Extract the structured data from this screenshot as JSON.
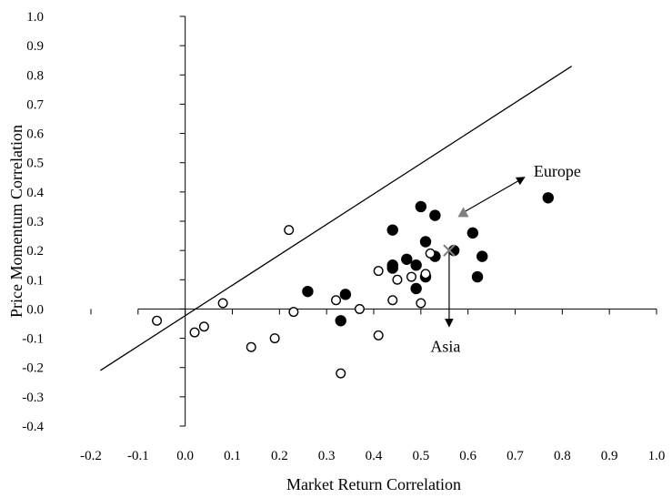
{
  "chart_data": {
    "type": "scatter",
    "title": "",
    "xlabel": "Market Return Correlation",
    "ylabel": "Price Momentum Correlation",
    "xlim": [
      -0.2,
      1.0
    ],
    "ylim": [
      -0.4,
      1.0
    ],
    "x_ticks": [
      "-0.2",
      "-0.1",
      "0.0",
      "0.1",
      "0.2",
      "0.3",
      "0.4",
      "0.5",
      "0.6",
      "0.7",
      "0.8",
      "0.9",
      "1.0"
    ],
    "y_ticks": [
      "1.0",
      "0.9",
      "0.8",
      "0.7",
      "0.6",
      "0.5",
      "0.4",
      "0.3",
      "0.2",
      "0.1",
      "0.0",
      "-0.1",
      "-0.2",
      "-0.3",
      "-0.4"
    ],
    "grid": false,
    "legend": "none",
    "series": [
      {
        "marker": "filled-circle",
        "color": "#000000",
        "points": [
          [
            0.26,
            0.06
          ],
          [
            0.33,
            -0.04
          ],
          [
            0.34,
            0.05
          ],
          [
            0.44,
            0.27
          ],
          [
            0.44,
            0.15
          ],
          [
            0.44,
            0.14
          ],
          [
            0.47,
            0.17
          ],
          [
            0.49,
            0.07
          ],
          [
            0.49,
            0.15
          ],
          [
            0.5,
            0.35
          ],
          [
            0.51,
            0.23
          ],
          [
            0.51,
            0.11
          ],
          [
            0.53,
            0.18
          ],
          [
            0.53,
            0.32
          ],
          [
            0.57,
            0.2
          ],
          [
            0.61,
            0.26
          ],
          [
            0.62,
            0.11
          ],
          [
            0.63,
            0.18
          ],
          [
            0.77,
            0.38
          ]
        ]
      },
      {
        "marker": "open-circle",
        "color": "#000000",
        "points": [
          [
            -0.06,
            -0.04
          ],
          [
            0.02,
            -0.08
          ],
          [
            0.04,
            -0.06
          ],
          [
            0.08,
            0.02
          ],
          [
            0.14,
            -0.13
          ],
          [
            0.19,
            -0.1
          ],
          [
            0.22,
            0.27
          ],
          [
            0.23,
            -0.01
          ],
          [
            0.32,
            0.03
          ],
          [
            0.33,
            -0.22
          ],
          [
            0.37,
            0.0
          ],
          [
            0.41,
            0.13
          ],
          [
            0.41,
            -0.09
          ],
          [
            0.44,
            0.03
          ],
          [
            0.45,
            0.1
          ],
          [
            0.48,
            0.11
          ],
          [
            0.5,
            0.02
          ],
          [
            0.51,
            0.12
          ],
          [
            0.52,
            0.19
          ]
        ]
      }
    ],
    "special_points": [
      {
        "marker": "triangle",
        "color": "#808080",
        "x": 0.59,
        "y": 0.33
      },
      {
        "marker": "x-cross",
        "color": "#808080",
        "x": 0.56,
        "y": 0.2
      }
    ],
    "reference_line": {
      "from": [
        -0.18,
        -0.21
      ],
      "to": [
        0.82,
        0.83
      ],
      "color": "#000000"
    },
    "annotations": [
      {
        "text": "Europe",
        "arrow_from": [
          0.59,
          0.33
        ],
        "arrow_to": [
          0.72,
          0.45
        ]
      },
      {
        "text": "Asia",
        "arrow_from": [
          0.56,
          0.2
        ],
        "arrow_to": [
          0.56,
          -0.06
        ]
      }
    ]
  }
}
